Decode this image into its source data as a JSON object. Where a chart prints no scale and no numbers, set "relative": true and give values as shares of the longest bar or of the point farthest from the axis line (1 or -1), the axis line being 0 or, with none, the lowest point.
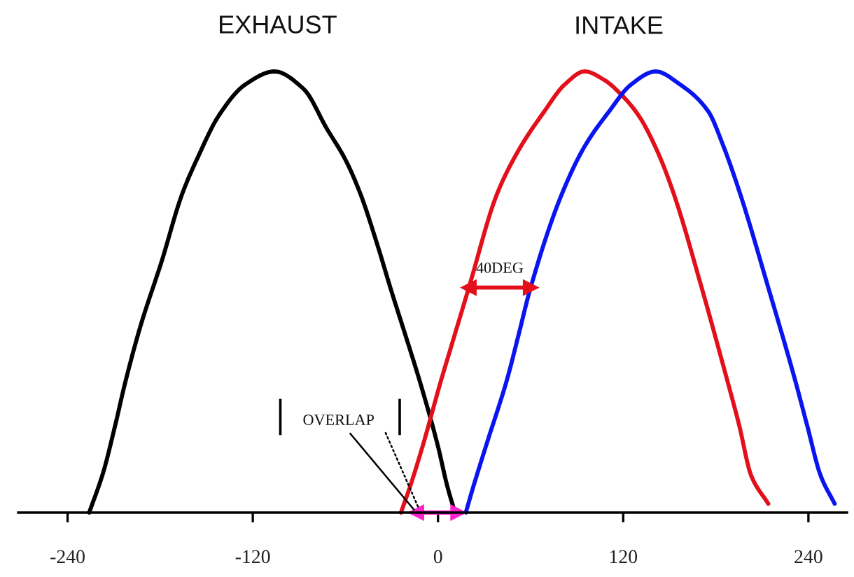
{
  "chart_data": {
    "type": "line",
    "relative": true,
    "xlim": [
      -272,
      265
    ],
    "xticks": [
      -240,
      -120,
      0,
      120,
      240
    ],
    "tick_labels": "x",
    "series": [
      {
        "color": "#000000",
        "x": [
          -226,
          -217,
          -209,
          -203,
          -193,
          -179,
          -166,
          -155,
          -142,
          -125,
          -106,
          -87,
          -72,
          -60,
          -50,
          -40,
          -30,
          -20,
          -12,
          0,
          6,
          11
        ],
        "values": [
          0,
          0.09,
          0.2,
          0.29,
          0.42,
          0.57,
          0.72,
          0.81,
          0.9,
          0.97,
          1,
          0.96,
          0.87,
          0.8,
          0.72,
          0.615,
          0.5,
          0.39,
          0.3,
          0.15,
          0.06,
          0
        ]
      },
      {
        "color": "#e3101c",
        "x": [
          -24,
          -18,
          -10,
          2,
          8,
          20,
          38,
          52,
          69,
          82,
          95,
          108,
          118,
          130,
          142,
          153,
          170,
          187,
          195,
          203,
          214
        ],
        "values": [
          0,
          0.06,
          0.15,
          0.3,
          0.37,
          0.51,
          0.72,
          0.82,
          0.91,
          0.97,
          1,
          0.98,
          0.95,
          0.9,
          0.82,
          0.72,
          0.52,
          0.305,
          0.2,
          0.083,
          0.02
        ]
      },
      {
        "color": "#0a14f0",
        "x": [
          18,
          23,
          31,
          45,
          52,
          60,
          80,
          95,
          111,
          125,
          141,
          157,
          175,
          185,
          196,
          214,
          231,
          239,
          248,
          257
        ],
        "values": [
          0,
          0.06,
          0.15,
          0.305,
          0.4,
          0.51,
          0.72,
          0.83,
          0.91,
          0.97,
          1,
          0.97,
          0.91,
          0.83,
          0.72,
          0.51,
          0.305,
          0.2,
          0.083,
          0.02
        ]
      },
      {
        "color": "#e3101c",
        "x": [
          20,
          60
        ],
        "values": [
          0.51,
          0.51
        ],
        "marker": "triangle"
      },
      {
        "color": "#ff22cc",
        "x": [
          -14,
          13
        ],
        "values": [
          0,
          0
        ],
        "marker": "triangle"
      }
    ],
    "annotations": [
      {
        "text": "EXHAUST",
        "x": -104,
        "y": 1
      },
      "INTAKE",
      {
        "text": "40DEG",
        "x": 40,
        "y": 0.51
      },
      {
        "text": "OVERLAP",
        "x": -14,
        "y": 0
      }
    ]
  }
}
